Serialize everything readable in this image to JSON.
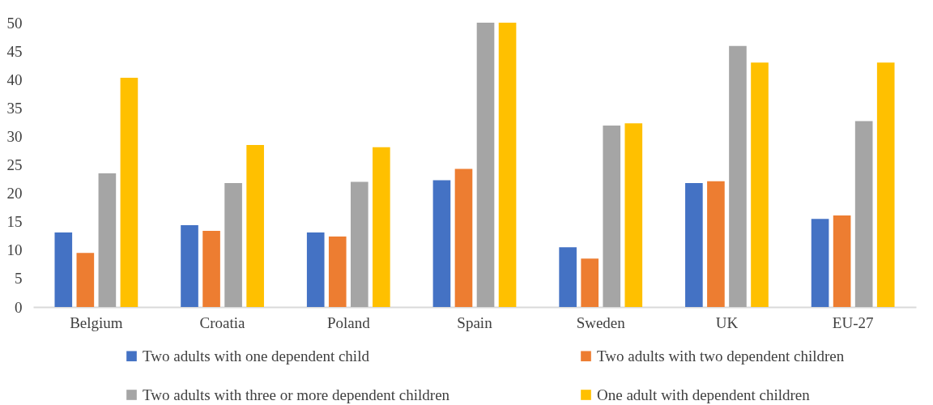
{
  "chart_data": {
    "type": "bar",
    "categories": [
      "Belgium",
      "Croatia",
      "Poland",
      "Spain",
      "Sweden",
      "UK",
      "EU-27"
    ],
    "series": [
      {
        "name": "Two adults with one dependent child",
        "color": "#4472c4",
        "values": [
          13.1,
          14.4,
          13.1,
          22.3,
          10.5,
          21.8,
          15.5
        ]
      },
      {
        "name": "Two adults with two dependent children",
        "color": "#ed7d31",
        "values": [
          9.5,
          13.4,
          12.4,
          24.3,
          8.5,
          22.1,
          16.1
        ]
      },
      {
        "name": "Two adults with three or more dependent children",
        "color": "#a5a5a5",
        "values": [
          23.5,
          21.8,
          22.0,
          50,
          31.9,
          45.9,
          32.7
        ]
      },
      {
        "name": "One adult with dependent children",
        "color": "#ffc000",
        "values": [
          40.3,
          28.5,
          28.1,
          50,
          32.3,
          43.0,
          43.0
        ]
      }
    ],
    "ylim": [
      0,
      50
    ],
    "yticks": [
      0,
      5,
      10,
      15,
      20,
      25,
      30,
      35,
      40,
      45,
      50
    ],
    "grid": false,
    "legend": "bottom"
  }
}
